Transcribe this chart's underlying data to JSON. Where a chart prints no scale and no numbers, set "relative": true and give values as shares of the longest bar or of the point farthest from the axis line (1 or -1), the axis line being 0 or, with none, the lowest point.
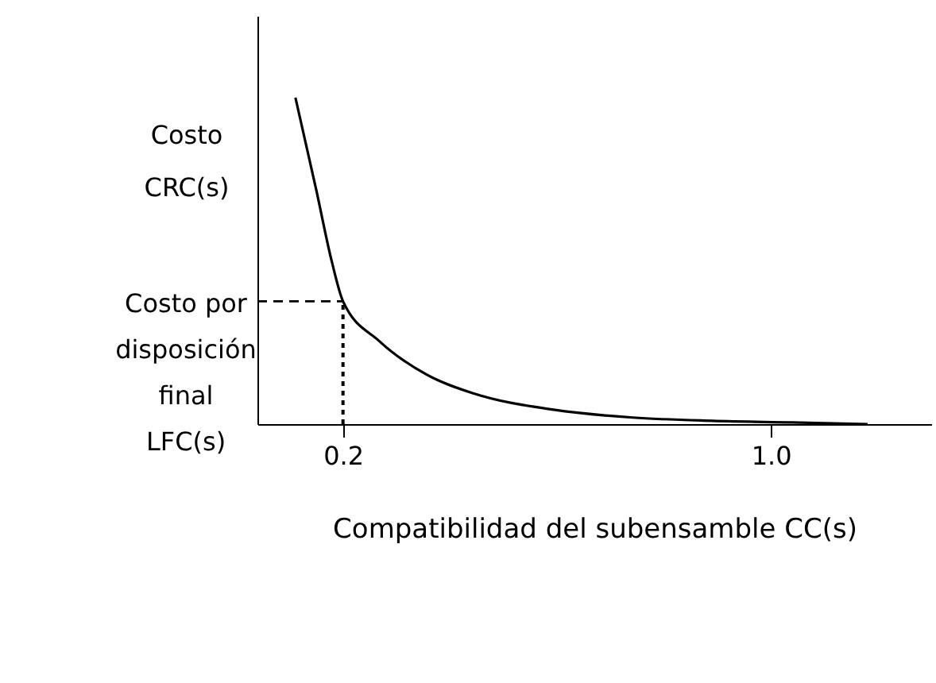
{
  "chart_data": {
    "type": "line",
    "relative": true,
    "xlabel": "Compatibilidad del subensamble CC(s)",
    "ylabel": "Costo CRC(s)",
    "x": [
      0.111,
      0.15,
      0.179,
      0.2,
      0.268,
      0.357,
      0.446,
      0.594,
      0.742,
      0.89,
      1.039,
      1.181
    ],
    "series": [
      {
        "color": "#000000",
        "values": [
          1.0,
          0.717,
          0.498,
          0.376,
          0.254,
          0.151,
          0.093,
          0.044,
          0.02,
          0.01,
          0.005,
          0
        ]
      }
    ],
    "xlim": [
      0.04,
      1.3
    ],
    "xticks": [
      0.2,
      {
        "value": 1.0,
        "label": "1.0"
      }
    ],
    "ref_lines": [
      {
        "axis": "y",
        "value": 0.376,
        "label": "Costo por disposición final LFC(s)",
        "line_style": "dashed"
      },
      {
        "axis": "x",
        "value": 0.2,
        "line_style": "dotted"
      }
    ],
    "grid": false,
    "marker": "none",
    "line_style": "solid"
  }
}
